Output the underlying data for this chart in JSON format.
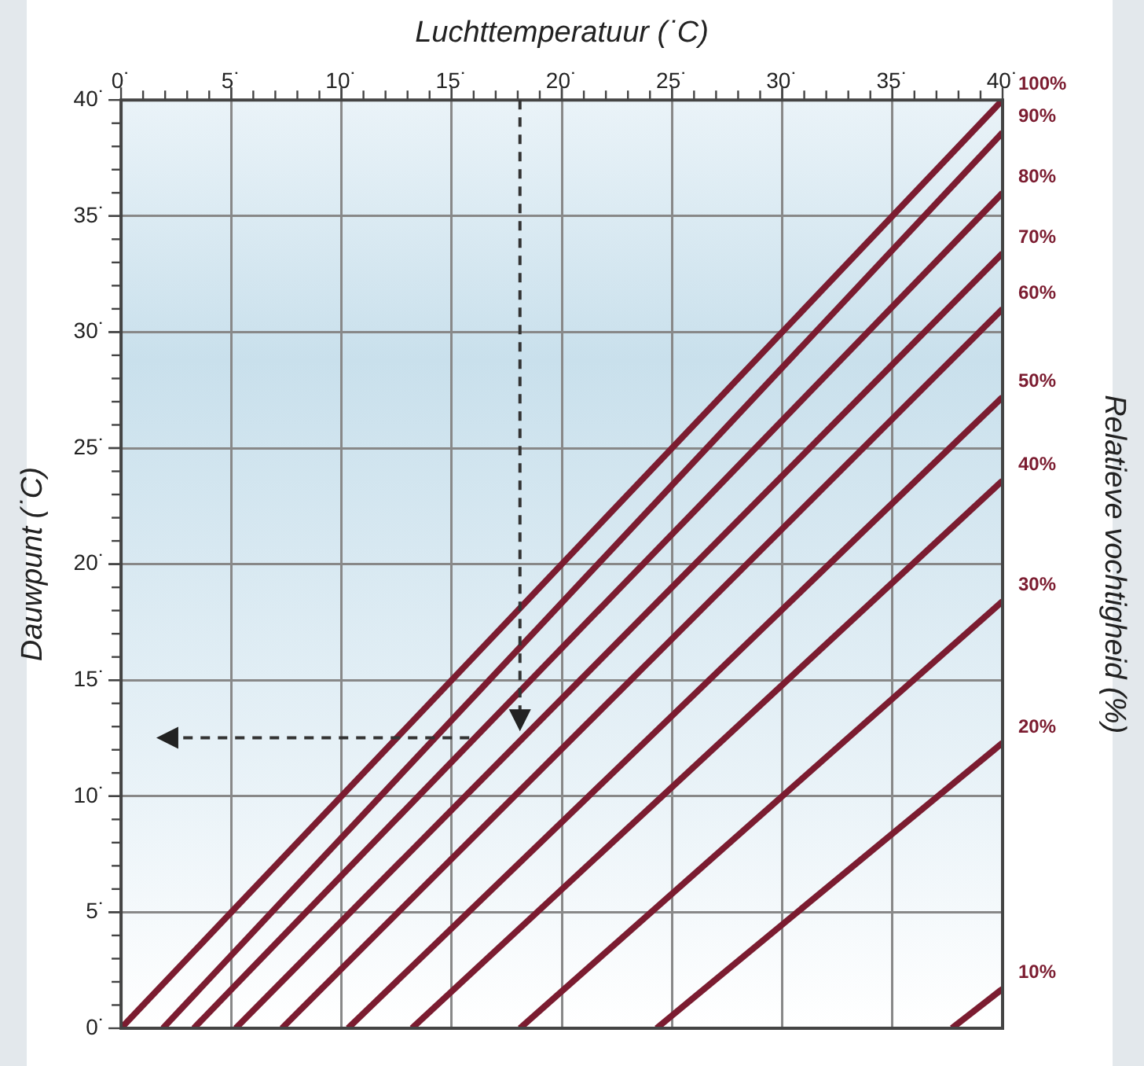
{
  "chart_data": {
    "type": "line",
    "xlabel": "Luchttemperatuur (˙C)",
    "ylabel": "Dauwpunt (˙C)",
    "y2label": "Relatieve vochtigheid (%)",
    "xlim": [
      0,
      40
    ],
    "ylim": [
      0,
      40
    ],
    "xticks": [
      {
        "value": 0,
        "label": "0˙"
      },
      {
        "value": 5,
        "label": "5˙"
      },
      {
        "value": 10,
        "label": "10˙"
      },
      {
        "value": 15,
        "label": "15˙"
      },
      {
        "value": 20,
        "label": "20˙"
      },
      {
        "value": 25,
        "label": "25˙"
      },
      {
        "value": 30,
        "label": "30˙"
      },
      {
        "value": 35,
        "label": "35˙"
      },
      {
        "value": 40,
        "label": "40˙"
      }
    ],
    "yticks": [
      {
        "value": 0,
        "label": "0˙"
      },
      {
        "value": 5,
        "label": "5˙"
      },
      {
        "value": 10,
        "label": "10˙"
      },
      {
        "value": 15,
        "label": "15˙"
      },
      {
        "value": 20,
        "label": "20˙"
      },
      {
        "value": 25,
        "label": "25˙"
      },
      {
        "value": 30,
        "label": "30˙"
      },
      {
        "value": 35,
        "label": "35˙"
      },
      {
        "value": 40,
        "label": "40˙"
      }
    ],
    "grid": true,
    "legend": false,
    "marker": "none",
    "line_style": "solid",
    "series": [
      {
        "name": "100%",
        "color": "#7b1c30",
        "x": [
          0,
          40
        ],
        "values": [
          0,
          40
        ]
      },
      {
        "name": "90%",
        "color": "#7b1c30",
        "x": [
          1.9,
          40
        ],
        "values": [
          0,
          38.6
        ]
      },
      {
        "name": "80%",
        "color": "#7b1c30",
        "x": [
          3.3,
          40
        ],
        "values": [
          0,
          36
        ]
      },
      {
        "name": "70%",
        "color": "#7b1c30",
        "x": [
          5.2,
          40
        ],
        "values": [
          0,
          33.4
        ]
      },
      {
        "name": "60%",
        "color": "#7b1c30",
        "x": [
          7.3,
          40
        ],
        "values": [
          0,
          31
        ]
      },
      {
        "name": "50%",
        "color": "#7b1c30",
        "x": [
          10.3,
          40
        ],
        "values": [
          0,
          27.2
        ]
      },
      {
        "name": "40%",
        "color": "#7b1c30",
        "x": [
          13.2,
          40
        ],
        "values": [
          0,
          23.6
        ]
      },
      {
        "name": "30%",
        "color": "#7b1c30",
        "x": [
          18.1,
          40
        ],
        "values": [
          0,
          18.4
        ]
      },
      {
        "name": "20%",
        "color": "#7b1c30",
        "x": [
          24.3,
          40
        ],
        "values": [
          0,
          12.3
        ]
      },
      {
        "name": "10%",
        "color": "#7b1c30",
        "x": [
          37.7,
          40
        ],
        "values": [
          0,
          1.7
        ]
      }
    ]
  }
}
